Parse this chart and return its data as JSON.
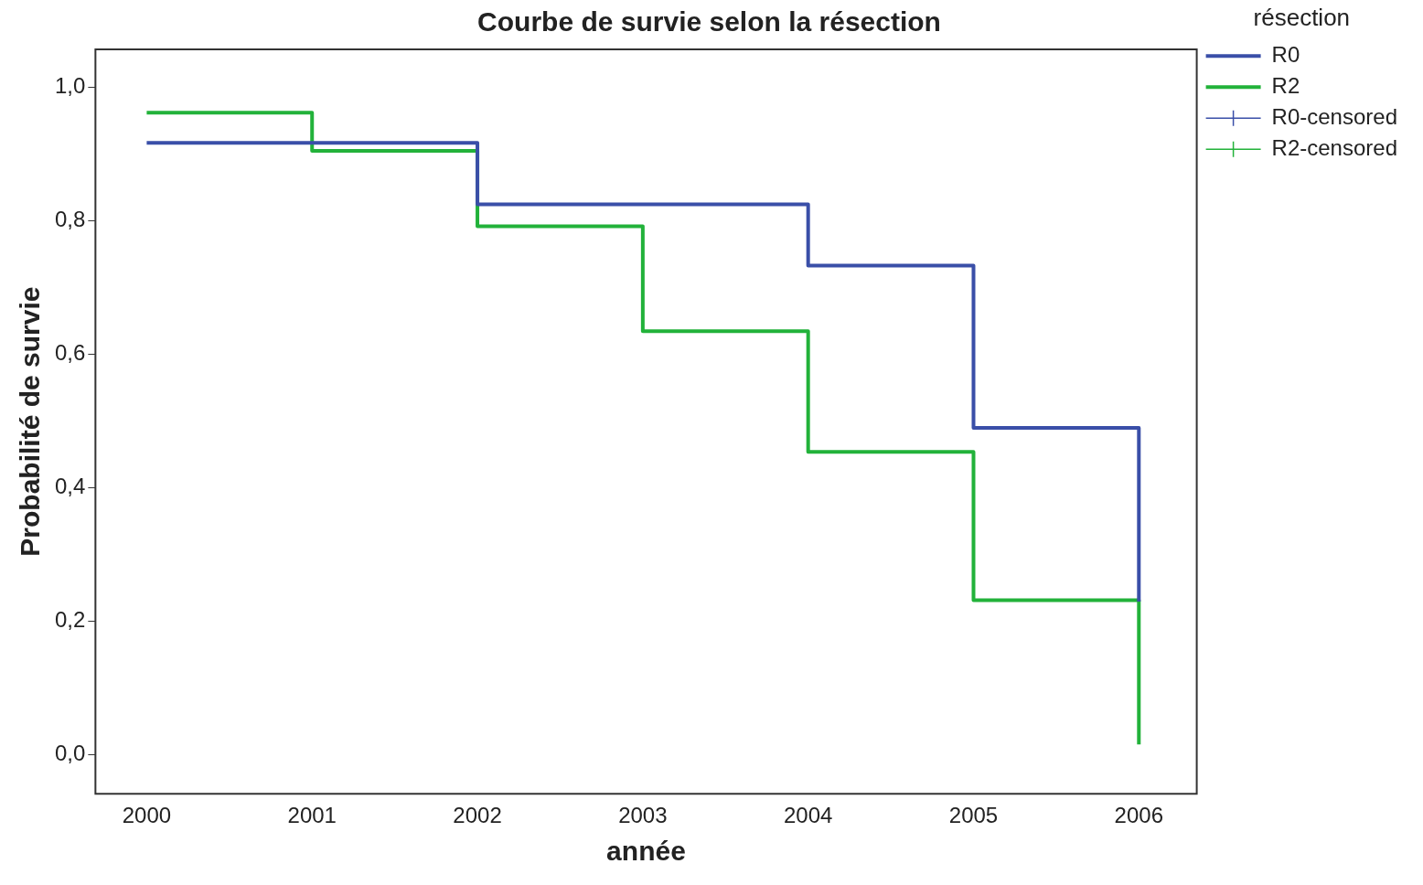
{
  "chart_data": {
    "type": "step",
    "title": "Courbe de survie selon la résection",
    "xlabel": "année",
    "ylabel": "Probabilité de survie",
    "legend_title": "résection",
    "legend": "top right",
    "grid": false,
    "x": [
      2000,
      2001,
      2002,
      2003,
      2004,
      2005,
      2006
    ],
    "xlim": [
      1999.69,
      2006.35
    ],
    "xticks": [
      2000,
      2001,
      2002,
      2003,
      2004,
      2005,
      2006
    ],
    "ylim": [
      -0.058,
      1.057
    ],
    "yticks": [
      {
        "value": 0,
        "label": "0,0"
      },
      {
        "value": 0.2,
        "label": "0,2"
      },
      {
        "value": 0.4,
        "label": "0,4"
      },
      {
        "value": 0.6,
        "label": "0,6"
      },
      {
        "value": 0.8,
        "label": "0,8"
      },
      {
        "value": 1,
        "label": "1,0"
      }
    ],
    "series": [
      {
        "name": "R0",
        "color": "#3a4fa8",
        "values": [
          0.917,
          0.917,
          0.825,
          0.825,
          0.733,
          0.49,
          0.23
        ]
      },
      {
        "name": "R2",
        "color": "#22b23a",
        "values": [
          0.962,
          0.905,
          0.792,
          0.635,
          0.454,
          0.232,
          0.016
        ]
      },
      {
        "name": "R0-censored",
        "type": "scatter",
        "marker": "cross",
        "color": "#3a4fa8",
        "values": [
          null,
          null,
          null,
          null,
          null,
          null,
          null
        ]
      },
      {
        "name": "R2-censored",
        "type": "scatter",
        "marker": "cross",
        "color": "#22b23a",
        "values": [
          null,
          null,
          null,
          null,
          null,
          null,
          null
        ]
      }
    ]
  }
}
